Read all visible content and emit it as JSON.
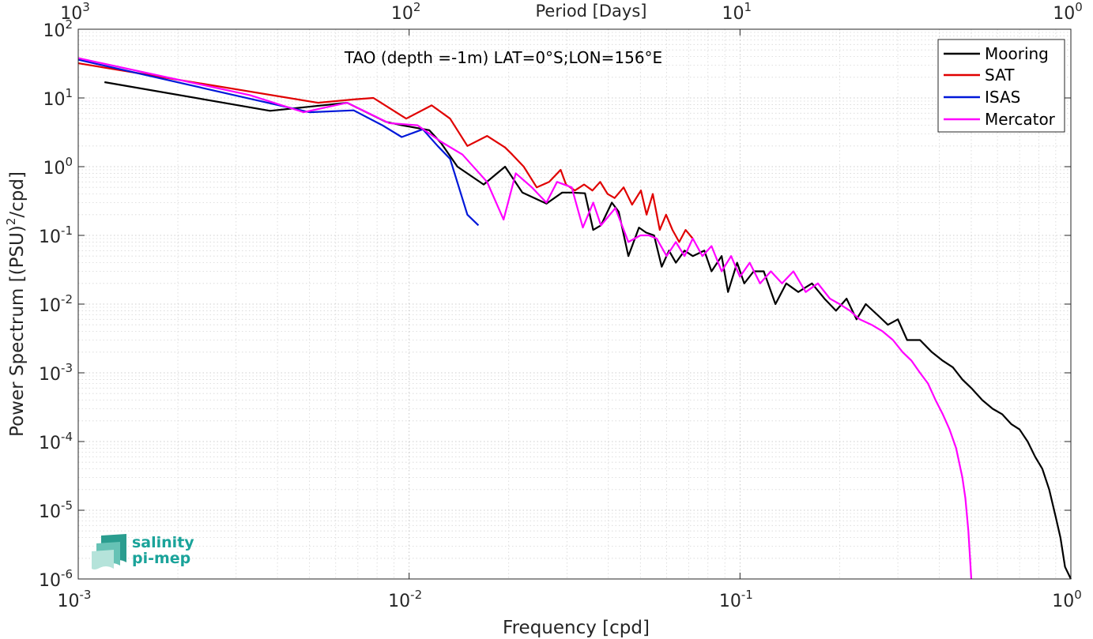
{
  "chart_data": {
    "type": "line",
    "title": "TAO (depth =-1m) LAT=0°S;LON=156°E",
    "xlabel": "Frequency [cpd]",
    "ylabel_main": "Power Spectrum [(PSU)",
    "ylabel_sup": "2",
    "ylabel_tail": "/cpd]",
    "top_xlabel": "Period [Days]",
    "xscale": "log",
    "yscale": "log",
    "xlim": [
      0.001,
      1
    ],
    "ylim": [
      1e-06,
      100
    ],
    "grid": true,
    "legend_position": "top-right",
    "x_ticks": [
      {
        "value": 0.001,
        "base": "10",
        "exp": "-3"
      },
      {
        "value": 0.01,
        "base": "10",
        "exp": "-2"
      },
      {
        "value": 0.1,
        "base": "10",
        "exp": "-1"
      },
      {
        "value": 1,
        "base": "10",
        "exp": "0"
      }
    ],
    "top_ticks": [
      {
        "value": 0.001,
        "base": "10",
        "exp": "3"
      },
      {
        "value": 0.01,
        "base": "10",
        "exp": "2"
      },
      {
        "value": 0.1,
        "base": "10",
        "exp": "1"
      },
      {
        "value": 1,
        "base": "10",
        "exp": "0"
      }
    ],
    "y_ticks": [
      {
        "value": 100,
        "base": "10",
        "exp": "2"
      },
      {
        "value": 10,
        "base": "10",
        "exp": "1"
      },
      {
        "value": 1,
        "base": "10",
        "exp": "0"
      },
      {
        "value": 0.1,
        "base": "10",
        "exp": "-1"
      },
      {
        "value": 0.01,
        "base": "10",
        "exp": "-2"
      },
      {
        "value": 0.001,
        "base": "10",
        "exp": "-3"
      },
      {
        "value": 0.0001,
        "base": "10",
        "exp": "-4"
      },
      {
        "value": 1e-05,
        "base": "10",
        "exp": "-5"
      },
      {
        "value": 1e-06,
        "base": "10",
        "exp": "-6"
      }
    ],
    "series": [
      {
        "name": "Mooring",
        "color": "#000000",
        "x": [
          0.0012,
          0.0038,
          0.0065,
          0.0085,
          0.0095,
          0.0115,
          0.0125,
          0.014,
          0.0168,
          0.0195,
          0.022,
          0.026,
          0.029,
          0.031,
          0.034,
          0.036,
          0.038,
          0.041,
          0.043,
          0.046,
          0.0495,
          0.052,
          0.055,
          0.058,
          0.061,
          0.064,
          0.068,
          0.072,
          0.078,
          0.082,
          0.088,
          0.092,
          0.098,
          0.103,
          0.11,
          0.118,
          0.128,
          0.138,
          0.15,
          0.165,
          0.18,
          0.195,
          0.21,
          0.225,
          0.24,
          0.26,
          0.28,
          0.3,
          0.32,
          0.35,
          0.38,
          0.41,
          0.44,
          0.47,
          0.5,
          0.54,
          0.58,
          0.62,
          0.66,
          0.7,
          0.74,
          0.78,
          0.82,
          0.86,
          0.9,
          0.93,
          0.96,
          1.0
        ],
        "y": [
          17,
          6.5,
          8.5,
          4.5,
          4.0,
          3.4,
          2.2,
          1.0,
          0.55,
          1.0,
          0.42,
          0.29,
          0.42,
          0.42,
          0.41,
          0.12,
          0.14,
          0.3,
          0.22,
          0.05,
          0.13,
          0.11,
          0.1,
          0.035,
          0.06,
          0.04,
          0.06,
          0.05,
          0.06,
          0.03,
          0.05,
          0.015,
          0.04,
          0.02,
          0.03,
          0.03,
          0.01,
          0.02,
          0.015,
          0.02,
          0.012,
          0.008,
          0.012,
          0.006,
          0.01,
          0.007,
          0.005,
          0.006,
          0.003,
          0.003,
          0.002,
          0.0015,
          0.0012,
          0.0008,
          0.0006,
          0.0004,
          0.0003,
          0.00025,
          0.00018,
          0.00015,
          0.0001,
          6e-05,
          4e-05,
          2e-05,
          8e-06,
          4e-06,
          1.5e-06,
          1e-06
        ]
      },
      {
        "name": "SAT",
        "color": "#e00000",
        "x": [
          0.001,
          0.0053,
          0.0068,
          0.0078,
          0.0098,
          0.0117,
          0.0133,
          0.015,
          0.0172,
          0.0195,
          0.0205,
          0.0222,
          0.0243,
          0.0265,
          0.0287,
          0.0298,
          0.0317,
          0.0338,
          0.0358,
          0.0378,
          0.0398,
          0.0418,
          0.0445,
          0.0472,
          0.0502,
          0.0522,
          0.0545,
          0.0572,
          0.0598,
          0.0625,
          0.0655,
          0.0685,
          0.072
        ],
        "y": [
          32,
          8.5,
          9.5,
          10,
          5,
          7.8,
          5,
          2,
          2.8,
          1.9,
          1.5,
          1.0,
          0.5,
          0.6,
          0.9,
          0.55,
          0.45,
          0.55,
          0.45,
          0.6,
          0.4,
          0.35,
          0.5,
          0.28,
          0.45,
          0.2,
          0.4,
          0.12,
          0.2,
          0.12,
          0.08,
          0.12,
          0.09
        ]
      },
      {
        "name": "ISAS",
        "color": "#0018d9",
        "x": [
          0.001,
          0.005,
          0.0068,
          0.0083,
          0.0095,
          0.011,
          0.0122,
          0.0133,
          0.015,
          0.0162
        ],
        "y": [
          36,
          6.2,
          6.6,
          4.0,
          2.7,
          3.5,
          2.0,
          1.3,
          0.2,
          0.14
        ]
      },
      {
        "name": "Mercator",
        "color": "#ff00ff",
        "x": [
          0.001,
          0.0033,
          0.0048,
          0.0065,
          0.0087,
          0.0106,
          0.0125,
          0.0145,
          0.0172,
          0.0193,
          0.021,
          0.0235,
          0.026,
          0.028,
          0.031,
          0.0335,
          0.036,
          0.038,
          0.042,
          0.046,
          0.05,
          0.053,
          0.056,
          0.06,
          0.064,
          0.068,
          0.072,
          0.077,
          0.082,
          0.088,
          0.094,
          0.1,
          0.107,
          0.115,
          0.124,
          0.134,
          0.145,
          0.158,
          0.172,
          0.187,
          0.2,
          0.215,
          0.23,
          0.25,
          0.27,
          0.29,
          0.31,
          0.33,
          0.35,
          0.37,
          0.39,
          0.41,
          0.43,
          0.45,
          0.47,
          0.48,
          0.49,
          0.5
        ],
        "y": [
          38,
          11,
          6.2,
          8.5,
          4.3,
          4.0,
          2.3,
          1.5,
          0.6,
          0.17,
          0.8,
          0.5,
          0.3,
          0.6,
          0.5,
          0.13,
          0.3,
          0.14,
          0.25,
          0.08,
          0.1,
          0.1,
          0.09,
          0.05,
          0.08,
          0.05,
          0.09,
          0.05,
          0.07,
          0.03,
          0.05,
          0.025,
          0.04,
          0.02,
          0.03,
          0.02,
          0.03,
          0.015,
          0.02,
          0.012,
          0.01,
          0.008,
          0.006,
          0.005,
          0.004,
          0.003,
          0.002,
          0.0015,
          0.001,
          0.0007,
          0.0004,
          0.00025,
          0.00015,
          8e-05,
          3e-05,
          1.5e-05,
          5e-06,
          1e-06
        ]
      }
    ]
  },
  "logo": {
    "line1": "salinity",
    "line2": "pi-mep"
  }
}
